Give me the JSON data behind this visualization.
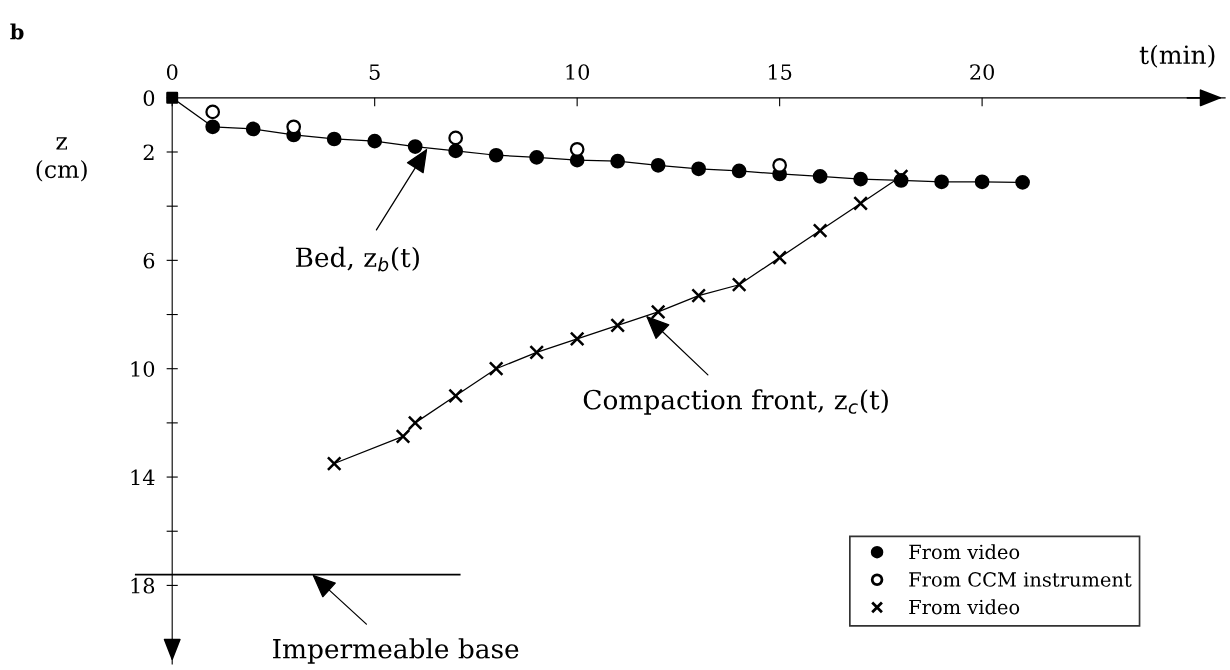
{
  "chart_data": {
    "type": "scatter",
    "title": "b",
    "xlabel": "t(min)",
    "ylabel": "z\n(cm)",
    "xlim": [
      0,
      26
    ],
    "ylim": [
      20.9,
      0
    ],
    "xticks": [
      0,
      5,
      10,
      15,
      20
    ],
    "yticks": [
      0,
      2,
      {
        "value": 4,
        "label": null
      },
      6,
      {
        "value": 8,
        "label": null
      },
      10,
      {
        "value": 12,
        "label": null
      },
      14,
      {
        "value": 16,
        "label": null
      },
      18
    ],
    "grid": false,
    "legend": "bottom right",
    "series": [
      {
        "name": "From video",
        "marker": "circle",
        "color": "#000000",
        "x": [
          1,
          2,
          3,
          4,
          5,
          6,
          7,
          8,
          9,
          10,
          11,
          12,
          13,
          14,
          15,
          16,
          17,
          18,
          19,
          20,
          21
        ],
        "values": [
          1.07,
          1.15,
          1.37,
          1.52,
          1.6,
          1.8,
          1.96,
          2.12,
          2.2,
          2.3,
          2.34,
          2.49,
          2.62,
          2.7,
          2.81,
          2.9,
          3.0,
          3.05,
          3.1,
          3.1,
          3.12
        ]
      },
      {
        "name": "From CCM instrument",
        "marker": "circle",
        "color": "#ffffff",
        "x": [
          1,
          3,
          7,
          10,
          15
        ],
        "values": [
          0.52,
          1.07,
          1.48,
          1.9,
          2.49
        ]
      },
      {
        "name": "From video",
        "type": "line",
        "marker": "cross",
        "line_style": "solid",
        "color": "#000000",
        "x": [
          4,
          5.7,
          6,
          7,
          8,
          9,
          10,
          11,
          12,
          13,
          14,
          15,
          16,
          17,
          18
        ],
        "values": [
          13.5,
          12.5,
          12.0,
          11.0,
          10.0,
          9.4,
          8.9,
          8.4,
          7.9,
          7.3,
          6.9,
          5.9,
          4.9,
          3.9,
          2.9
        ]
      },
      {
        "type": "line",
        "marker": "none",
        "line_style": "solid",
        "color": "#000000",
        "x": [
          0,
          1,
          2,
          3,
          4,
          5,
          6,
          7,
          8,
          9,
          10,
          11,
          12,
          13,
          14,
          15,
          16,
          17,
          18,
          19,
          20,
          21
        ],
        "values": [
          0,
          1.07,
          1.15,
          1.37,
          1.52,
          1.6,
          1.8,
          1.96,
          2.12,
          2.2,
          2.3,
          2.34,
          2.49,
          2.62,
          2.7,
          2.81,
          2.9,
          3.0,
          3.05,
          3.1,
          3.1,
          3.12
        ]
      },
      {
        "marker": "square",
        "color": "#000000",
        "x": [
          0
        ],
        "values": [
          0
        ]
      }
    ],
    "ref_lines": [
      {
        "axis": "y",
        "value": 17.6,
        "color": "#000000",
        "line_style": "solid"
      }
    ],
    "annotations": [
      {
        "text": "Bed, z$_{b}$(t)",
        "x": 6.3,
        "y": 1.87
      },
      {
        "text": "Compaction front, z$_{c}$(t)",
        "x": 11.7,
        "y": 8.05
      },
      {
        "text": "Impermeable base",
        "x": 3.46,
        "y": 17.6
      }
    ]
  }
}
